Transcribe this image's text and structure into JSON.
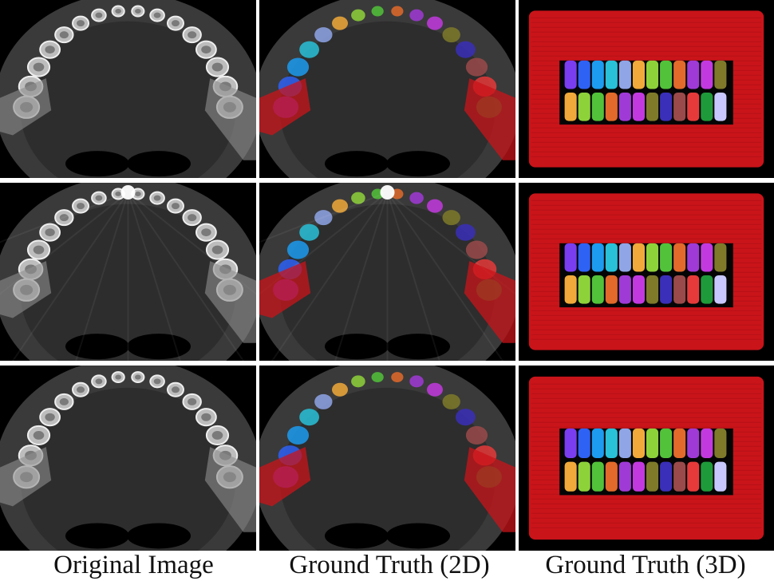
{
  "figure": {
    "columns": [
      {
        "label": "Original Image"
      },
      {
        "label": "Ground Truth (2D)"
      },
      {
        "label": "Ground Truth (3D)"
      }
    ],
    "rows": 3,
    "panel_kinds": [
      "ct-slice",
      "segmentation-2d",
      "segmentation-3d"
    ],
    "tooth_palette": [
      "#7a3df0",
      "#2e62f5",
      "#1c9bf0",
      "#29c1d8",
      "#8fa5e6",
      "#f0a93a",
      "#8ed23a",
      "#52c23a",
      "#e26a2a",
      "#a03ad6",
      "#c23adf",
      "#7e7a2a",
      "#3a2fb8",
      "#9a4a4a",
      "#e63a3a",
      "#1f9a3a",
      "#c8c8ff"
    ],
    "jaw_color": "#c9141a"
  }
}
